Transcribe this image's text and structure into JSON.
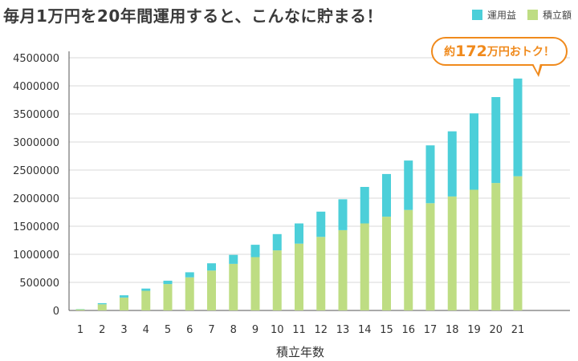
{
  "title": "毎月1万円を20年間運用すると、こんなに貯まる！",
  "callout": {
    "prefix": "約",
    "number": "172",
    "suffix": "万円おトク！"
  },
  "colors": {
    "interest": "#4ccfd9",
    "principal": "#bedd83",
    "accent": "#f08a1c",
    "grid": "#d8d8d8"
  },
  "chart_data": {
    "type": "bar",
    "stacked": true,
    "xlabel": "積立年数",
    "ylabel": "",
    "ylim": [
      0,
      4500000
    ],
    "yticks": [
      0,
      500000,
      1000000,
      1500000,
      2000000,
      2500000,
      3000000,
      3500000,
      4000000,
      4500000
    ],
    "grid": true,
    "legend": "top-right",
    "categories": [
      "1",
      "2",
      "3",
      "4",
      "5",
      "6",
      "7",
      "8",
      "9",
      "10",
      "11",
      "12",
      "13",
      "14",
      "15",
      "16",
      "17",
      "18",
      "19",
      "20",
      "21"
    ],
    "series": [
      {
        "name": "積立額",
        "color": "#bedd83",
        "values": [
          20000,
          110000,
          230000,
          350000,
          470000,
          590000,
          710000,
          830000,
          950000,
          1070000,
          1190000,
          1310000,
          1430000,
          1550000,
          1670000,
          1790000,
          1910000,
          2030000,
          2150000,
          2270000,
          2390000
        ]
      },
      {
        "name": "運用益",
        "color": "#4ccfd9",
        "values": [
          5000,
          20000,
          40000,
          40000,
          60000,
          90000,
          130000,
          160000,
          220000,
          290000,
          360000,
          450000,
          550000,
          650000,
          760000,
          880000,
          1030000,
          1160000,
          1360000,
          1530000,
          1740000
        ]
      }
    ]
  }
}
